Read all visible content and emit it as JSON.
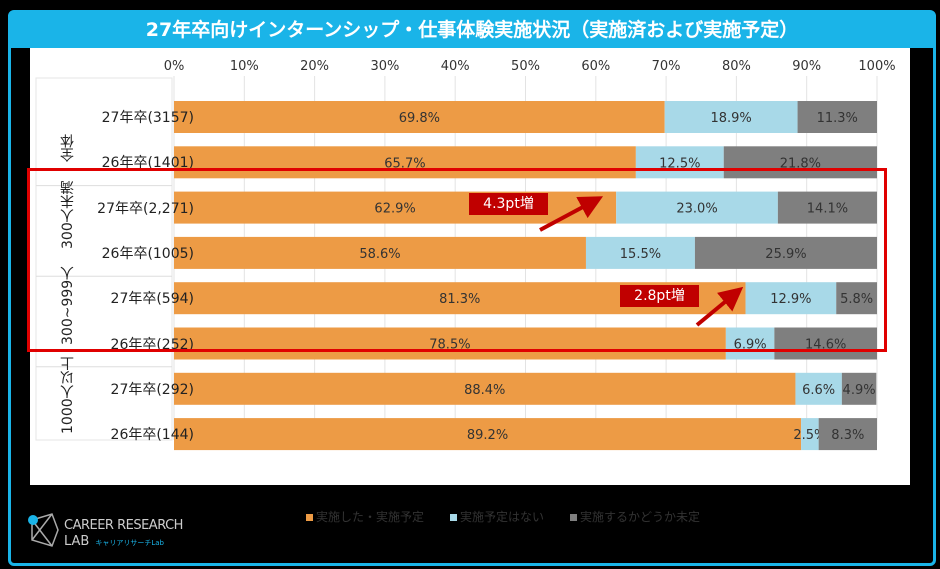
{
  "title": "27年卒向けインターンシップ・仕事体験実施状況（実施済および実施予定）",
  "chart_data": {
    "type": "bar",
    "stacked": true,
    "orientation": "horizontal",
    "title": "27年卒向けインターンシップ・仕事体験実施状況（実施済および実施予定）",
    "xlim": [
      0,
      100
    ],
    "x_ticks": [
      "0%",
      "10%",
      "20%",
      "30%",
      "40%",
      "50%",
      "60%",
      "70%",
      "80%",
      "90%",
      "100%"
    ],
    "groups": [
      {
        "label": "全体",
        "rows": [
          0,
          1
        ]
      },
      {
        "label": "300人未満",
        "rows": [
          2,
          3
        ]
      },
      {
        "label": "300~999人",
        "rows": [
          4,
          5
        ]
      },
      {
        "label": "1000人以上",
        "rows": [
          6,
          7
        ]
      }
    ],
    "categories": [
      "27年卒(3157)",
      "26年卒(1401)",
      "27年卒(2,271)",
      "26年卒(1005)",
      "27年卒(594)",
      "26年卒(252)",
      "27年卒(292)",
      "26年卒(144)"
    ],
    "series": [
      {
        "name": "実施した・実施予定",
        "color": "#ed9b45",
        "values": [
          69.8,
          65.7,
          62.9,
          58.6,
          81.3,
          78.5,
          88.4,
          89.2
        ]
      },
      {
        "name": "実施予定はない",
        "color": "#a8d9e8",
        "values": [
          18.9,
          12.5,
          23.0,
          15.5,
          12.9,
          6.9,
          6.6,
          2.5
        ]
      },
      {
        "name": "実施するかどうか未定",
        "color": "#7f7f7f",
        "values": [
          11.3,
          21.8,
          14.1,
          25.9,
          5.8,
          14.6,
          4.9,
          8.3
        ]
      }
    ],
    "legend": "bottom",
    "annotations": [
      "4.3pt増",
      "2.8pt増"
    ]
  },
  "logo": {
    "name": "CAREER RESEARCH",
    "line2": "LAB",
    "sub": "キャリアリサーチLab"
  }
}
